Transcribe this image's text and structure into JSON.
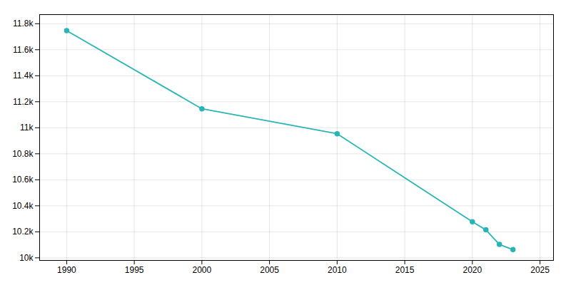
{
  "chart_data": {
    "type": "line",
    "x": [
      1990,
      2000,
      2010,
      2020,
      2021,
      2022,
      2023
    ],
    "values": [
      11747,
      11146,
      10954,
      10277,
      10215,
      10103,
      10063
    ],
    "color": "#2ab5b5",
    "marker": "circle",
    "xlim": [
      1988,
      2026
    ],
    "ylim": [
      9980,
      11870
    ],
    "xticks": [
      1990,
      1995,
      2000,
      2005,
      2010,
      2015,
      2020,
      2025
    ],
    "yticks": [
      {
        "value": 10000,
        "label": "10k"
      },
      {
        "value": 10200,
        "label": "10.2k"
      },
      {
        "value": 10400,
        "label": "10.4k"
      },
      {
        "value": 10600,
        "label": "10.6k"
      },
      {
        "value": 10800,
        "label": "10.8k"
      },
      {
        "value": 11000,
        "label": "11k"
      },
      {
        "value": 11200,
        "label": "11.2k"
      },
      {
        "value": 11400,
        "label": "11.4k"
      },
      {
        "value": 11600,
        "label": "11.6k"
      },
      {
        "value": 11800,
        "label": "11.8k"
      }
    ],
    "grid": true
  }
}
